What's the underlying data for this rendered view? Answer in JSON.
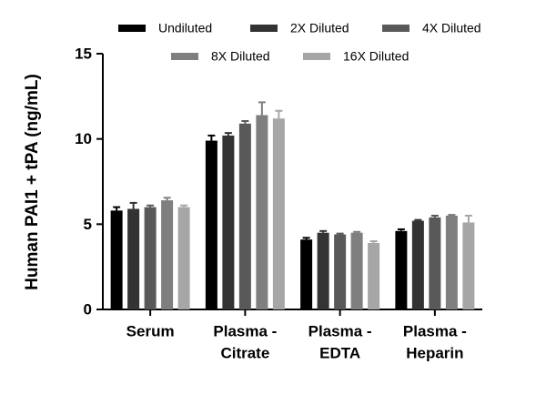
{
  "chart_data": {
    "type": "bar",
    "y_label": "Human PAI1 + tPA (ng/mL)",
    "categories": [
      [
        "Serum"
      ],
      [
        "Plasma -",
        "Citrate"
      ],
      [
        "Plasma -",
        "EDTA"
      ],
      [
        "Plasma -",
        "Heparin"
      ]
    ],
    "series": [
      {
        "name": "Undiluted",
        "color": "#000000",
        "values": [
          5.8,
          9.9,
          4.1,
          4.6
        ],
        "errors": [
          0.2,
          0.3,
          0.1,
          0.1
        ]
      },
      {
        "name": "2X Diluted",
        "color": "#333333",
        "values": [
          5.9,
          10.2,
          4.5,
          5.2
        ],
        "errors": [
          0.35,
          0.15,
          0.1,
          0.05
        ]
      },
      {
        "name": "4X Diluted",
        "color": "#595959",
        "values": [
          6.0,
          10.9,
          4.4,
          5.4
        ],
        "errors": [
          0.1,
          0.15,
          0.05,
          0.1
        ]
      },
      {
        "name": "8X Diluted",
        "color": "#7f7f7f",
        "values": [
          6.4,
          11.4,
          4.5,
          5.5
        ],
        "errors": [
          0.15,
          0.75,
          0.05,
          0.05
        ]
      },
      {
        "name": "16X Diluted",
        "color": "#a6a6a6",
        "values": [
          6.0,
          11.2,
          3.9,
          5.1
        ],
        "errors": [
          0.1,
          0.45,
          0.1,
          0.4
        ]
      }
    ],
    "ylim": [
      0,
      15
    ],
    "yticks": [
      0,
      5,
      10,
      15
    ],
    "legend": "top"
  }
}
